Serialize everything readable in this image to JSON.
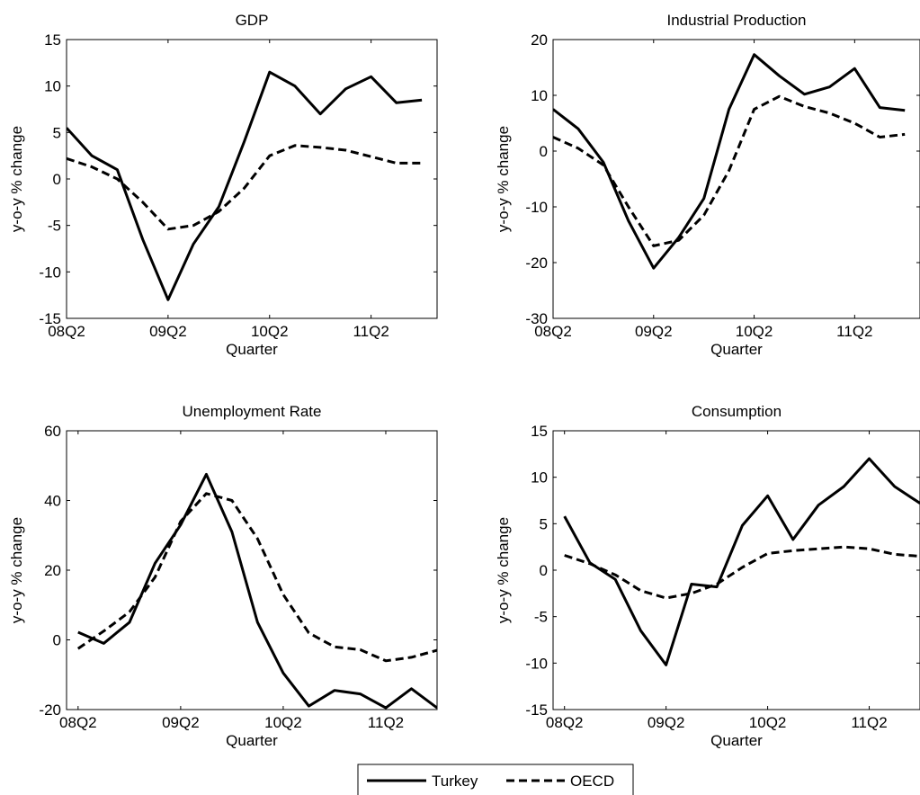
{
  "figure": {
    "legend": [
      {
        "label": "Turkey",
        "style": "solid"
      },
      {
        "label": "OECD",
        "style": "dashed"
      }
    ]
  },
  "chart_data": [
    {
      "type": "line",
      "title": "GDP",
      "xlabel": "Quarter",
      "ylabel": "y-o-y % change",
      "x": [
        1,
        2,
        3,
        4,
        5,
        6,
        7,
        8,
        9,
        10,
        11,
        12,
        13,
        14,
        15
      ],
      "xticks": [
        {
          "x": 1,
          "label": "08Q2"
        },
        {
          "x": 5,
          "label": "09Q2"
        },
        {
          "x": 9,
          "label": "10Q2"
        },
        {
          "x": 13,
          "label": "11Q2"
        }
      ],
      "xlim": [
        1,
        15.6
      ],
      "ylim": [
        -15,
        15
      ],
      "yticks": [
        -15,
        -10,
        -5,
        0,
        5,
        10,
        15
      ],
      "series": [
        {
          "name": "Turkey",
          "style": "solid",
          "values": [
            5.5,
            2.5,
            1.0,
            -6.5,
            -13.0,
            -7.0,
            -3.0,
            4.0,
            11.5,
            10.0,
            7.0,
            9.7,
            11.0,
            8.2,
            8.5
          ]
        },
        {
          "name": "OECD",
          "style": "dashed",
          "values": [
            2.2,
            1.3,
            0.0,
            -2.5,
            -5.4,
            -5.0,
            -3.5,
            -1.0,
            2.5,
            3.6,
            3.4,
            3.1,
            2.4,
            1.7,
            1.7
          ]
        }
      ]
    },
    {
      "type": "line",
      "title": "Industrial Production",
      "xlabel": "Quarter",
      "ylabel": "y-o-y % change",
      "x": [
        1,
        2,
        3,
        4,
        5,
        6,
        7,
        8,
        9,
        10,
        11,
        12,
        13,
        14,
        15
      ],
      "xticks": [
        {
          "x": 1,
          "label": "08Q2"
        },
        {
          "x": 5,
          "label": "09Q2"
        },
        {
          "x": 9,
          "label": "10Q2"
        },
        {
          "x": 13,
          "label": "11Q2"
        }
      ],
      "xlim": [
        1,
        15.6
      ],
      "ylim": [
        -30,
        20
      ],
      "yticks": [
        -30,
        -20,
        -10,
        0,
        10,
        20
      ],
      "series": [
        {
          "name": "Turkey",
          "style": "solid",
          "values": [
            7.5,
            4.0,
            -2.0,
            -12.5,
            -21.0,
            -15.5,
            -8.5,
            7.5,
            17.3,
            13.5,
            10.2,
            11.5,
            14.8,
            7.8,
            7.3
          ]
        },
        {
          "name": "OECD",
          "style": "dashed",
          "values": [
            2.5,
            0.5,
            -2.5,
            -10.0,
            -17.0,
            -16.0,
            -11.5,
            -3.5,
            7.5,
            9.8,
            8.0,
            6.8,
            5.0,
            2.5,
            3.0
          ]
        }
      ]
    },
    {
      "type": "line",
      "title": "Unemployment Rate",
      "xlabel": "Quarter",
      "ylabel": "y-o-y % change",
      "x": [
        1,
        2,
        3,
        4,
        5,
        6,
        7,
        8,
        9,
        10,
        11,
        12,
        13,
        14,
        15
      ],
      "xticks": [
        {
          "x": 1,
          "label": "08Q2"
        },
        {
          "x": 5,
          "label": "09Q2"
        },
        {
          "x": 9,
          "label": "10Q2"
        },
        {
          "x": 13,
          "label": "11Q2"
        }
      ],
      "xlim": [
        0.55,
        15
      ],
      "ylim": [
        -20,
        60
      ],
      "yticks": [
        -20,
        0,
        20,
        40,
        60
      ],
      "series": [
        {
          "name": "Turkey",
          "style": "solid",
          "values": [
            2.2,
            -1.0,
            5.0,
            22.0,
            33.0,
            47.5,
            31.0,
            5.0,
            -9.5,
            -19.0,
            -14.5,
            -15.5,
            -19.5,
            -14.0,
            -19.5
          ]
        },
        {
          "name": "OECD",
          "style": "dashed",
          "values": [
            -2.5,
            2.5,
            8.0,
            18.0,
            34.0,
            42.0,
            40.0,
            29.0,
            13.0,
            2.0,
            -2.0,
            -2.8,
            -6.0,
            -5.0,
            -3.0
          ]
        }
      ]
    },
    {
      "type": "line",
      "title": "Consumption",
      "xlabel": "Quarter",
      "ylabel": "y-o-y % change",
      "x": [
        1,
        2,
        3,
        4,
        5,
        6,
        7,
        8,
        9,
        10,
        11,
        12,
        13,
        14,
        15
      ],
      "xticks": [
        {
          "x": 1,
          "label": "08Q2"
        },
        {
          "x": 5,
          "label": "09Q2"
        },
        {
          "x": 9,
          "label": "10Q2"
        },
        {
          "x": 13,
          "label": "11Q2"
        }
      ],
      "xlim": [
        0.55,
        15
      ],
      "ylim": [
        -15,
        15
      ],
      "yticks": [
        -15,
        -10,
        -5,
        0,
        5,
        10,
        15
      ],
      "series": [
        {
          "name": "Turkey",
          "style": "solid",
          "values": [
            5.8,
            0.8,
            -1.0,
            -6.5,
            -10.2,
            -1.5,
            -1.8,
            4.8,
            8.0,
            3.3,
            7.0,
            9.0,
            12.0,
            9.0,
            7.2
          ]
        },
        {
          "name": "OECD",
          "style": "dashed",
          "values": [
            1.6,
            0.7,
            -0.5,
            -2.2,
            -3.0,
            -2.5,
            -1.5,
            0.3,
            1.8,
            2.1,
            2.3,
            2.5,
            2.3,
            1.7,
            1.5
          ]
        }
      ]
    }
  ]
}
